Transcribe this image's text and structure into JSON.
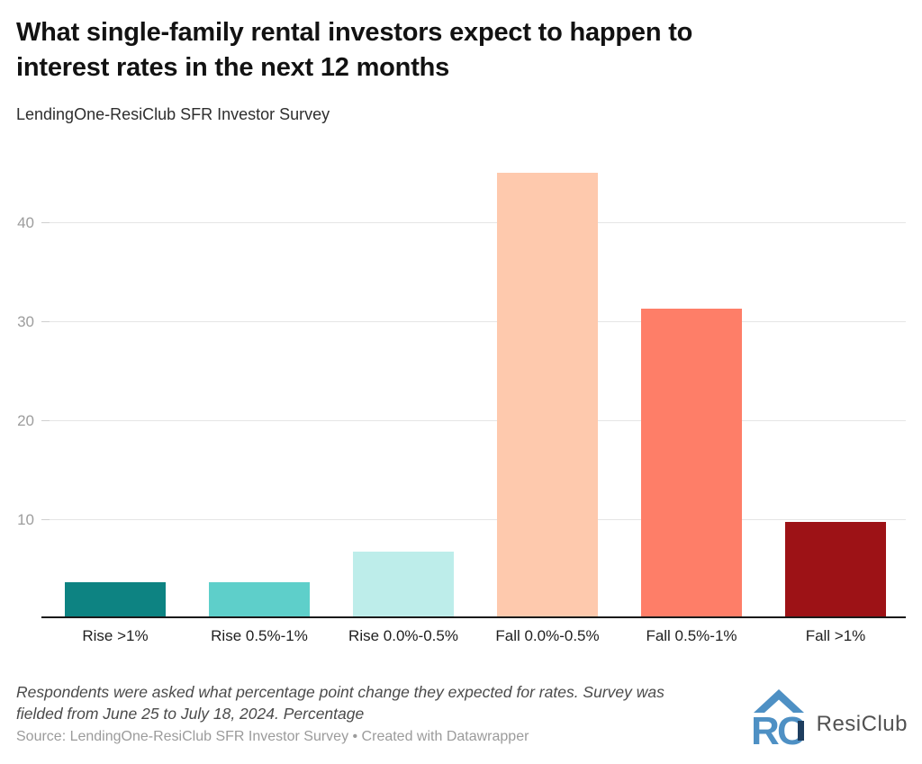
{
  "header": {
    "title_lines": [
      "What single-family rental investors expect to happen to",
      "interest rates in the next 12 months"
    ],
    "subtitle": "LendingOne-ResiClub SFR Investor Survey"
  },
  "chart_data": {
    "type": "bar",
    "title": "What single-family rental investors expect to happen to interest rates in the next 12 months",
    "subtitle": "LendingOne-ResiClub SFR Investor Survey",
    "categories": [
      "Rise >1%",
      "Rise 0.5%-1%",
      "Rise 0.0%-0.5%",
      "Fall 0.0%-0.5%",
      "Fall 0.5%-1%",
      "Fall >1%"
    ],
    "values": [
      3.6,
      3.6,
      6.7,
      45.0,
      31.3,
      9.7
    ],
    "bar_colors": [
      "#0d8382",
      "#5ecfca",
      "#bdedea",
      "#fec9ad",
      "#fe7e68",
      "#9d1216"
    ],
    "yticks": [
      10,
      20,
      30,
      40
    ],
    "ylim": [
      0,
      46
    ],
    "xlabel": "",
    "ylabel": "Percentage",
    "grid": "horizontal",
    "legend": "none"
  },
  "footer": {
    "note_lines": [
      "Respondents were asked what percentage point change they expected for rates. Survey was",
      "fielded from June 25 to July 18, 2024. Percentage"
    ],
    "source": "Source: LendingOne-ResiClub SFR Investor Survey • Created with Datawrapper",
    "logo_text": "ResiClub"
  },
  "colors": {
    "logo_blue": "#4e90c4",
    "logo_navy": "#1e3e5f",
    "axis_line": "#1a1a1a",
    "gridline": "#e5e5e5",
    "tick_label": "#9d9d9d"
  }
}
